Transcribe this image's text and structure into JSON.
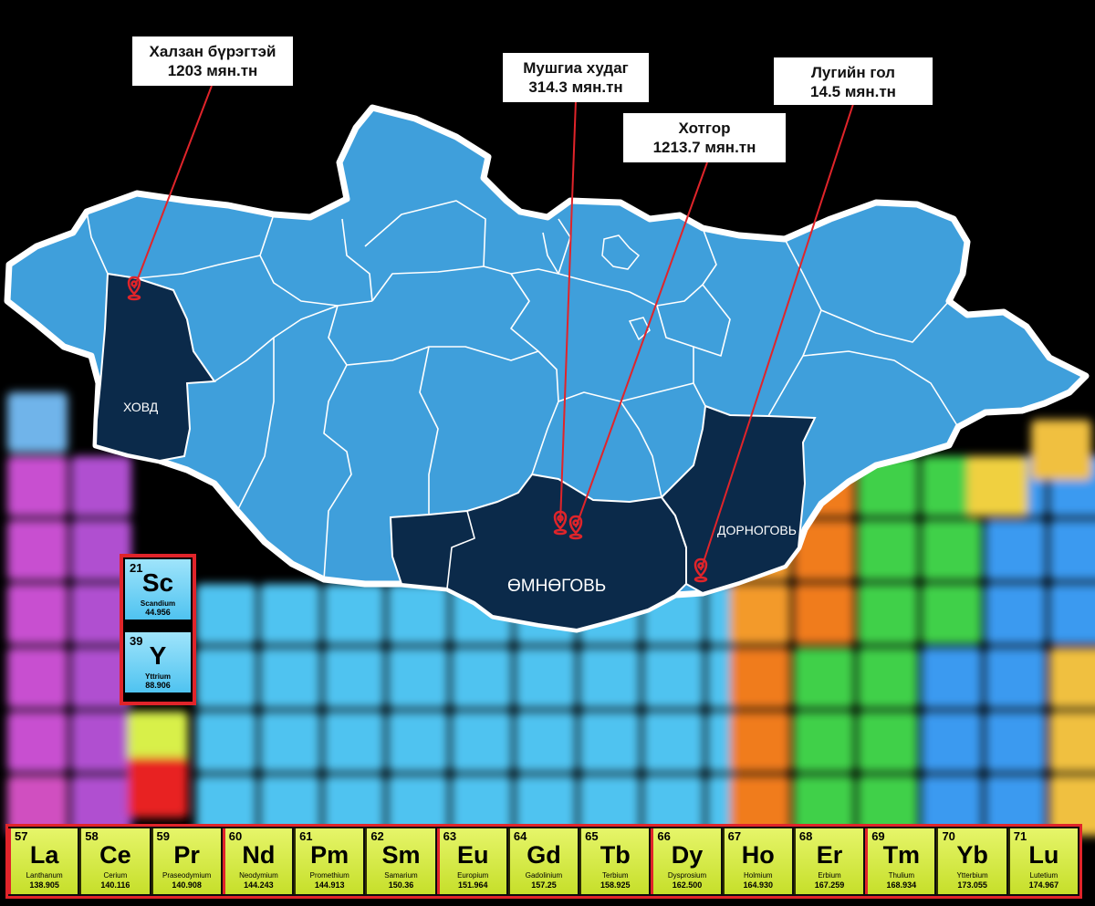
{
  "callouts": [
    {
      "name": "Халзан бүрэгтэй",
      "value": "1203 мян.тн"
    },
    {
      "name": "Мушгиа худаг",
      "value": "314.3 мян.тн"
    },
    {
      "name": "Хотгор",
      "value": "1213.7 мян.тн"
    },
    {
      "name": "Лугийн гол",
      "value": "14.5 мян.тн"
    }
  ],
  "regions": {
    "khovd": "ХОВД",
    "umnugovi": "ӨМНӨГОВЬ",
    "dornogovi": "ДОРНОГОВЬ"
  },
  "colors": {
    "background": "#000000",
    "province_fill": "#3f9fdb",
    "highlight_fill": "#0b2a4a",
    "border": "#ffffff",
    "marker": "#e0242a"
  },
  "highlight_elements": [
    {
      "number": "21",
      "symbol": "Sc",
      "name": "Scandium",
      "mass": "44.956"
    },
    {
      "number": "39",
      "symbol": "Y",
      "name": "Yttrium",
      "mass": "88.906"
    }
  ],
  "lanthanides": [
    {
      "number": "57",
      "symbol": "La",
      "name": "Lanthanum",
      "mass": "138.905"
    },
    {
      "number": "58",
      "symbol": "Ce",
      "name": "Cerium",
      "mass": "140.116"
    },
    {
      "number": "59",
      "symbol": "Pr",
      "name": "Praseodymium",
      "mass": "140.908"
    },
    {
      "number": "60",
      "symbol": "Nd",
      "name": "Neodymium",
      "mass": "144.243"
    },
    {
      "number": "61",
      "symbol": "Pm",
      "name": "Promethium",
      "mass": "144.913"
    },
    {
      "number": "62",
      "symbol": "Sm",
      "name": "Samarium",
      "mass": "150.36"
    },
    {
      "number": "63",
      "symbol": "Eu",
      "name": "Europium",
      "mass": "151.964"
    },
    {
      "number": "64",
      "symbol": "Gd",
      "name": "Gadolinium",
      "mass": "157.25"
    },
    {
      "number": "65",
      "symbol": "Tb",
      "name": "Terbium",
      "mass": "158.925"
    },
    {
      "number": "66",
      "symbol": "Dy",
      "name": "Dysprosium",
      "mass": "162.500"
    },
    {
      "number": "67",
      "symbol": "Ho",
      "name": "Holmium",
      "mass": "164.930"
    },
    {
      "number": "68",
      "symbol": "Er",
      "name": "Erbium",
      "mass": "167.259"
    },
    {
      "number": "69",
      "symbol": "Tm",
      "name": "Thulium",
      "mass": "168.934"
    },
    {
      "number": "70",
      "symbol": "Yb",
      "name": "Ytterbium",
      "mass": "173.055"
    },
    {
      "number": "71",
      "symbol": "Lu",
      "name": "Lutetium",
      "mass": "174.967"
    }
  ]
}
